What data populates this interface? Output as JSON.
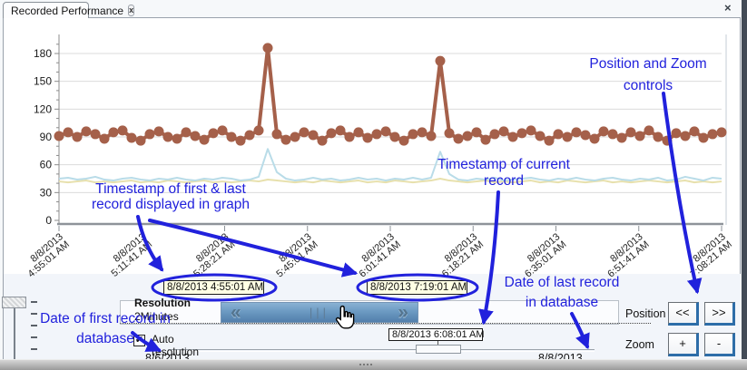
{
  "tab": {
    "title": "Recorded Performance"
  },
  "icons": {
    "tab_close": "x",
    "pane_close": "×",
    "left_chevron": "«",
    "right_chevron": "»",
    "grip": "|||",
    "check": "✔"
  },
  "chart_data": {
    "type": "line",
    "title": "",
    "xlabel": "",
    "ylabel": "",
    "ylim": [
      0,
      200
    ],
    "yticks": [
      0,
      30,
      60,
      90,
      120,
      150,
      180
    ],
    "grid": true,
    "legend": "none",
    "x_ticklabels": [
      [
        "8/8/2013",
        "4:55:01 AM"
      ],
      [
        "8/8/2013",
        "5:11:41 AM"
      ],
      [
        "8/8/2013",
        "5:28:21 AM"
      ],
      [
        "8/8/2013",
        "5:45:01 AM"
      ],
      [
        "8/8/2013",
        "6:01:41 AM"
      ],
      [
        "8/8/2013",
        "6:18:21 AM"
      ],
      [
        "8/8/2013",
        "6:35:01 AM"
      ],
      [
        "8/8/2013",
        "6:51:41 AM"
      ],
      [
        "8/8/2013",
        "7:08:21 AM"
      ]
    ],
    "series": [
      {
        "name": "recorded-performance",
        "color": "#A5604A",
        "marker": true,
        "values": [
          91,
          95,
          90,
          96,
          93,
          88,
          95,
          97,
          89,
          86,
          93,
          96,
          90,
          88,
          95,
          91,
          87,
          94,
          97,
          90,
          86,
          92,
          97,
          186,
          93,
          87,
          90,
          95,
          92,
          86,
          94,
          97,
          90,
          95,
          89,
          93,
          96,
          90,
          86,
          93,
          95,
          91,
          172,
          94,
          88,
          91,
          95,
          87,
          93,
          96,
          90,
          94,
          97,
          91,
          86,
          93,
          90,
          95,
          92,
          88,
          96,
          93,
          89,
          95,
          91,
          97,
          90,
          86,
          94,
          91,
          96,
          89,
          93,
          95
        ]
      },
      {
        "name": "baseline-blue",
        "color": "#B9DCE8",
        "marker": false,
        "values": [
          45,
          46,
          44,
          45,
          47,
          44,
          43,
          45,
          46,
          44,
          43,
          45,
          44,
          46,
          44,
          43,
          45,
          44,
          46,
          45,
          43,
          44,
          47,
          77,
          52,
          45,
          43,
          44,
          46,
          44,
          45,
          43,
          44,
          46,
          44,
          45,
          43,
          45,
          44,
          46,
          44,
          46,
          74,
          50,
          44,
          43,
          45,
          44,
          46,
          43,
          44,
          45,
          46,
          44,
          43,
          45,
          44,
          46,
          44,
          43,
          45,
          46,
          44,
          43,
          45,
          44,
          46,
          43,
          44,
          47,
          45,
          43,
          46,
          45
        ]
      },
      {
        "name": "baseline-yellow",
        "color": "#E7E0AC",
        "marker": false,
        "values": [
          42,
          41,
          42,
          43,
          41,
          42,
          41,
          42,
          43,
          41,
          42,
          41,
          43,
          42,
          41,
          42,
          43,
          41,
          42,
          41,
          42,
          43,
          42,
          44,
          43,
          42,
          41,
          42,
          41,
          43,
          42,
          41,
          42,
          43,
          41,
          42,
          41,
          43,
          42,
          41,
          42,
          43,
          45,
          43,
          42,
          41,
          42,
          43,
          41,
          42,
          41,
          42,
          43,
          41,
          42,
          41,
          43,
          42,
          41,
          42,
          43,
          41,
          42,
          41,
          42,
          43,
          42,
          41,
          42,
          43,
          41,
          42,
          41,
          42
        ]
      }
    ]
  },
  "timestamps": {
    "first_displayed": "8/8/2013 4:55:01 AM",
    "last_displayed": "8/8/2013 7:19:01 AM",
    "current": "8/8/2013 6:08:01 AM"
  },
  "database": {
    "first_date": "8/6/2013",
    "last_date": "8/8/2013"
  },
  "resolution": {
    "label": "Resolution",
    "value": "2Minutes",
    "auto_line1": "Auto",
    "auto_line2": "resolution",
    "auto_checked": true
  },
  "controls": {
    "position_label": "Position",
    "zoom_label": "Zoom",
    "position_back": "<<",
    "position_forward": ">>",
    "zoom_in": "+",
    "zoom_out": "-"
  },
  "annotations": {
    "first_last": {
      "line1": "Timestamp of first & last",
      "line2": "record displayed in graph"
    },
    "current": {
      "line1": "Timestamp of current",
      "line2": "record"
    },
    "pos_zoom": {
      "line1": "Position and Zoom",
      "line2": "controls"
    },
    "first_db": {
      "line1": "Date of first record in",
      "line2": "database"
    },
    "last_db": {
      "line1": "Date of last record",
      "line2": "in database"
    }
  },
  "colors": {
    "annotation_blue": "#2121DC",
    "scroll_thumb_blue": "#6C9AC2",
    "stamp_background": "#FFFFE4",
    "series_brown": "#A5604A",
    "series_light_blue": "#B9DCE8",
    "series_yellow": "#E7E0AC"
  }
}
